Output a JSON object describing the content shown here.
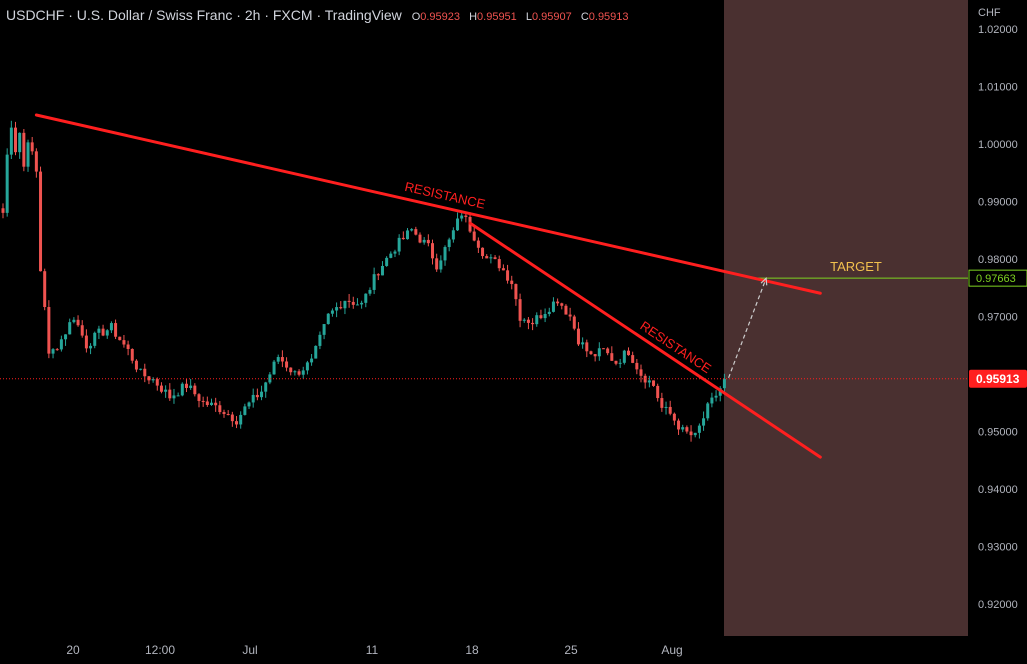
{
  "header": {
    "symbol": "USDCHF",
    "sep": "·",
    "name": "U.S. Dollar / Swiss Franc",
    "interval": "2h",
    "exchange": "FXCM",
    "platform": "TradingView",
    "ohlc": [
      {
        "key": "O",
        "value": "0.95923"
      },
      {
        "key": "H",
        "value": "0.95951"
      },
      {
        "key": "L",
        "value": "0.95907"
      },
      {
        "key": "C",
        "value": "0.95913"
      }
    ]
  },
  "colors": {
    "background": "#000000",
    "up": "#26a69a",
    "down": "#ef5350",
    "trendline": "#ff1f1f",
    "target_line": "#7ed321",
    "target_text": "#f2c14e",
    "shaded_zone": "#4a3030",
    "price_label_bg": "#ff1f1f",
    "axis_text": "#b2b5be"
  },
  "chart_data": {
    "type": "candlestick",
    "currency_label": "CHF",
    "y_ticks": [
      "1.02000",
      "1.01000",
      "1.00000",
      "0.99000",
      "0.98000",
      "0.97000",
      "0.96000",
      "0.95000",
      "0.94000",
      "0.93000",
      "0.92000"
    ],
    "ylim": [
      0.9144,
      1.025
    ],
    "x_ticks": [
      "20",
      "12:00",
      "Jul",
      "11",
      "18",
      "25",
      "Aug"
    ],
    "current_price": "0.95913",
    "target_price": "0.97663",
    "target_label": "TARGET",
    "path_points": [
      [
        0,
        0.988
      ],
      [
        1,
        0.998
      ],
      [
        2,
        1.0035
      ],
      [
        3,
        0.999
      ],
      [
        4,
        1.002
      ],
      [
        5,
        0.996
      ],
      [
        6,
        1.001
      ],
      [
        8,
        0.995
      ],
      [
        9,
        0.978
      ],
      [
        10,
        0.972
      ],
      [
        11,
        0.963
      ],
      [
        14,
        0.966
      ],
      [
        17,
        0.97
      ],
      [
        20,
        0.965
      ],
      [
        23,
        0.967
      ],
      [
        26,
        0.968
      ],
      [
        30,
        0.964
      ],
      [
        33,
        0.96
      ],
      [
        36,
        0.959
      ],
      [
        40,
        0.956
      ],
      [
        44,
        0.958
      ],
      [
        48,
        0.955
      ],
      [
        52,
        0.954
      ],
      [
        56,
        0.952
      ],
      [
        58,
        0.954
      ],
      [
        62,
        0.957
      ],
      [
        66,
        0.963
      ],
      [
        70,
        0.96
      ],
      [
        74,
        0.962
      ],
      [
        78,
        0.97
      ],
      [
        82,
        0.973
      ],
      [
        86,
        0.972
      ],
      [
        90,
        0.978
      ],
      [
        94,
        0.982
      ],
      [
        98,
        0.985
      ],
      [
        102,
        0.982
      ],
      [
        104,
        0.979
      ],
      [
        107,
        0.983
      ],
      [
        110,
        0.988
      ],
      [
        113,
        0.984
      ],
      [
        116,
        0.98
      ],
      [
        119,
        0.979
      ],
      [
        122,
        0.976
      ],
      [
        124,
        0.97
      ],
      [
        127,
        0.969
      ],
      [
        130,
        0.971
      ],
      [
        133,
        0.973
      ],
      [
        136,
        0.97
      ],
      [
        138,
        0.966
      ],
      [
        141,
        0.963
      ],
      [
        144,
        0.964
      ],
      [
        147,
        0.962
      ],
      [
        150,
        0.964
      ],
      [
        153,
        0.96
      ],
      [
        156,
        0.958
      ],
      [
        158,
        0.954
      ],
      [
        160,
        0.953
      ],
      [
        163,
        0.95
      ],
      [
        166,
        0.949
      ],
      [
        169,
        0.954
      ],
      [
        172,
        0.9575
      ],
      [
        173,
        0.9591
      ]
    ],
    "trendlines": [
      {
        "label": "RESISTANCE",
        "points": [
          [
            8,
            1.005
          ],
          [
            196,
            0.974
          ]
        ]
      },
      {
        "label": "RESISTANCE",
        "points": [
          [
            112,
            0.9862
          ],
          [
            196,
            0.9455
          ]
        ]
      }
    ],
    "projection": {
      "from": [
        174,
        0.9593
      ],
      "to": [
        183,
        0.9766
      ]
    }
  },
  "price_axis": {
    "current_label": "0.95913",
    "target_label": "0.97663"
  }
}
